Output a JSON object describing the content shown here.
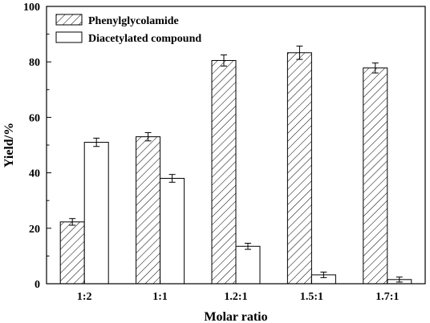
{
  "chart_data": {
    "type": "bar",
    "title": "",
    "xlabel": "Molar ratio",
    "ylabel": "Yield/%",
    "ylim": [
      0,
      100
    ],
    "yticks": [
      0,
      20,
      40,
      60,
      80,
      100
    ],
    "categories": [
      "1:2",
      "1:1",
      "1.2:1",
      "1.5:1",
      "1.7:1"
    ],
    "series": [
      {
        "name": "Phenylglycolamide",
        "pattern": "diagonal-hatch",
        "values": [
          22.3,
          53.0,
          80.5,
          83.3,
          77.8
        ],
        "errors": [
          1.2,
          1.5,
          2.0,
          2.4,
          1.8
        ]
      },
      {
        "name": "Diacetylated compound",
        "pattern": "open",
        "values": [
          51.0,
          38.0,
          13.5,
          3.2,
          1.5
        ],
        "errors": [
          1.5,
          1.4,
          1.1,
          1.0,
          0.9
        ]
      }
    ],
    "legend_position": "top-left",
    "grid": false,
    "colors": {
      "bar_stroke": "#000000",
      "bar_fill": "#ffffff",
      "hatch": "#000000"
    }
  }
}
